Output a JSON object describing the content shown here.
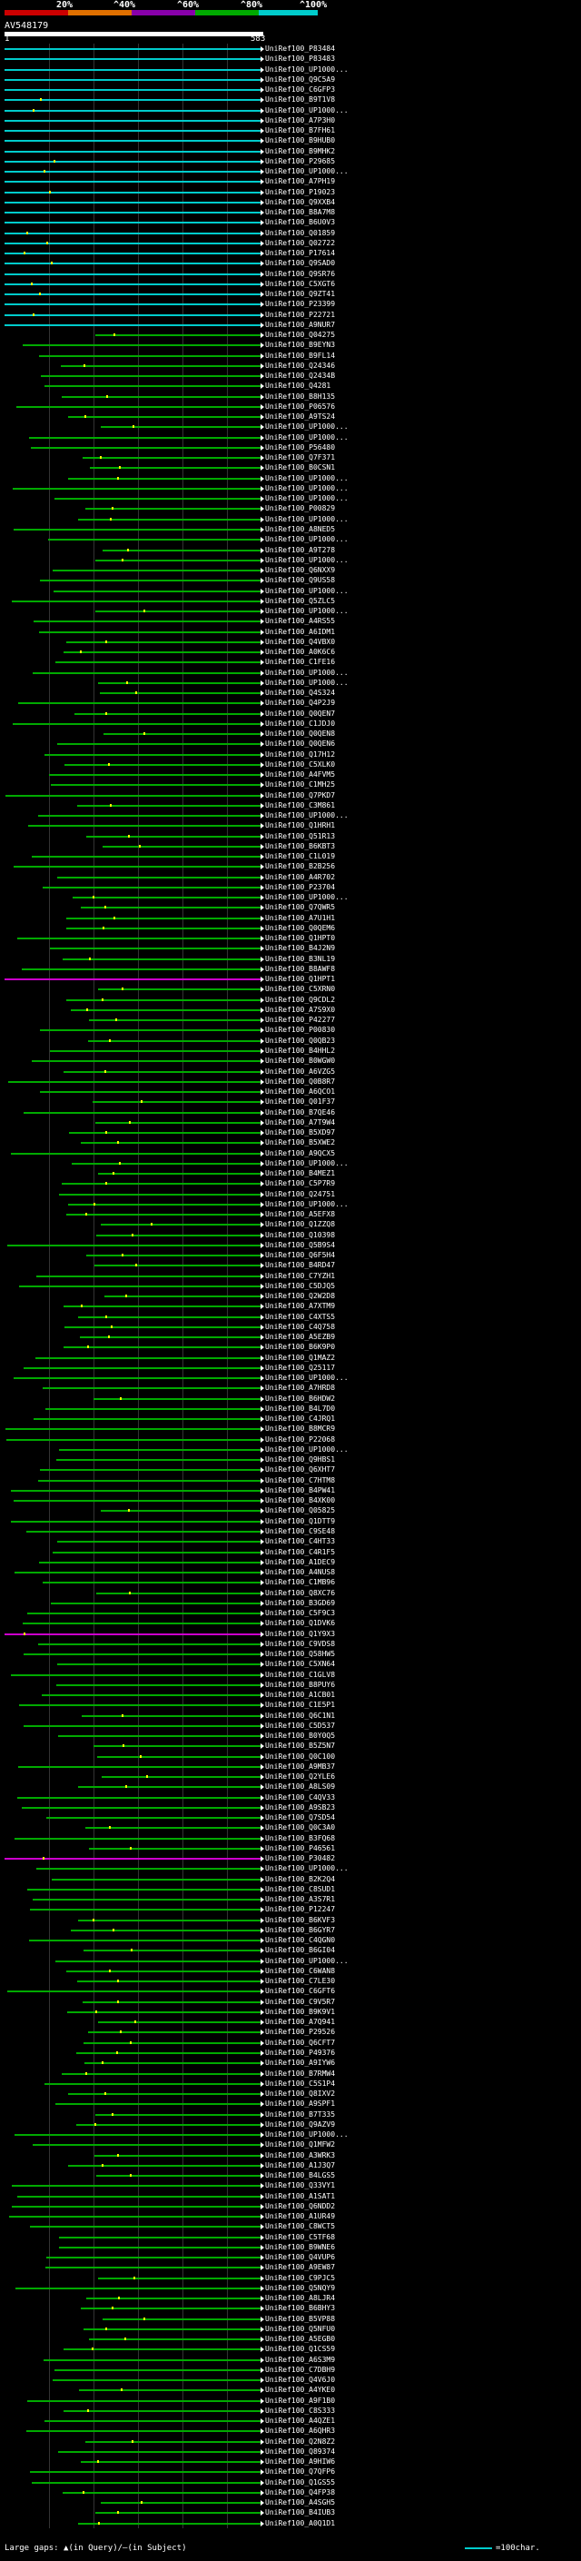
{
  "scale": {
    "labels": [
      "20%",
      "^40%",
      "^60%",
      "^80%",
      "^100%"
    ],
    "colors": [
      "#cc0000",
      "#e07000",
      "#8800aa",
      "#00aa00",
      "#00cccc"
    ]
  },
  "query": {
    "title": "AV548179",
    "start": "1",
    "end": "583"
  },
  "hit_colors": {
    "cyan": "#00cccc",
    "green": "#00aa00",
    "magenta": "#cc00cc",
    "insert": "#ffff00"
  },
  "hits": [
    "UniRef100_P83484",
    "UniRef100_P83483",
    "UniRef100_UP1000...",
    "UniRef100_Q9C5A9",
    "UniRef100_C6GFP3",
    "UniRef100_B9T1V8",
    "UniRef100_UP1000...",
    "UniRef100_A7P3H0",
    "UniRef100_B7FH61",
    "UniRef100_B9HUB0",
    "UniRef100_B9MHK2",
    "UniRef100_P29685",
    "UniRef100_UP1000...",
    "UniRef100_A7PH19",
    "UniRef100_P19023",
    "UniRef100_Q9XXB4",
    "UniRef100_B8A7M8",
    "UniRef100_B6U0V3",
    "UniRef100_Q01859",
    "UniRef100_Q02722",
    "UniRef100_P17614",
    "UniRef100_Q9SAD0",
    "UniRef100_Q9SR76",
    "UniRef100_C5XGT6",
    "UniRef100_Q9ZT41",
    "UniRef100_P23399",
    "UniRef100_P22721",
    "UniRef100_A9NUR7",
    "UniRef100_Q04275",
    "UniRef100_B9EYN3",
    "UniRef100_B9FL14",
    "UniRef100_Q24346",
    "UniRef100_Q2434B",
    "UniRef100_Q4281",
    "UniRef100_B8H135",
    "UniRef100_P06576",
    "UniRef100_A9TS24",
    "UniRef100_UP1000...",
    "UniRef100_UP1000...",
    "UniRef100_P56480",
    "UniRef100_Q7F371",
    "UniRef100_B0CSN1",
    "UniRef100_UP1000...",
    "UniRef100_UP1000...",
    "UniRef100_UP1000...",
    "UniRef100_P00829",
    "UniRef100_UP1000...",
    "UniRef100_A8NED5",
    "UniRef100_UP1000...",
    "UniRef100_A9T278",
    "UniRef100_UP1000...",
    "UniRef100_Q6NXX9",
    "UniRef100_Q9US58",
    "UniRef100_UP1000...",
    "UniRef100_Q5ZLC5",
    "UniRef100_UP1000...",
    "UniRef100_A4RS55",
    "UniRef100_A6IDM1",
    "UniRef100_Q4VBX0",
    "UniRef100_A0K6C6",
    "UniRef100_C1FE16",
    "UniRef100_UP1000...",
    "UniRef100_UP1000...",
    "UniRef100_Q4S324",
    "UniRef100_Q4P2J9",
    "UniRef100_Q0QEN7",
    "UniRef100_C1JDJ0",
    "UniRef100_Q0QEN8",
    "UniRef100_Q0QEN6",
    "UniRef100_Q17H12",
    "UniRef100_C5XLK0",
    "UniRef100_A4FVM5",
    "UniRef100_C1MH25",
    "UniRef100_Q7PKD7",
    "UniRef100_C3M861",
    "UniRef100_UP1000...",
    "UniRef100_Q1HRH1",
    "UniRef100_Q51R13",
    "UniRef100_B6KBT3",
    "UniRef100_C1L019",
    "UniRef100_B2B256",
    "UniRef100_A4R702",
    "UniRef100_P23704",
    "UniRef100_UP1000...",
    "UniRef100_Q7QWR5",
    "UniRef100_A7U1H1",
    "UniRef100_Q0QEM6",
    "UniRef100_Q1HPT0",
    "UniRef100_B4J2N9",
    "UniRef100_B3NL19",
    "UniRef100_B8AWF8",
    "UniRef100_Q1HPT1",
    "UniRef100_C5XRN0",
    "UniRef100_Q9CDL2",
    "UniRef100_A7S9X0",
    "UniRef100_P42277",
    "UniRef100_P00830",
    "UniRef100_Q0QB23",
    "UniRef100_B4HHL2",
    "UniRef100_B0WGW0",
    "UniRef100_A6VZG5",
    "UniRef100_Q0B8R7",
    "UniRef100_A6QCO1",
    "UniRef100_Q01F37",
    "UniRef100_B7QE46",
    "UniRef100_A7T9W4",
    "UniRef100_B5XD97",
    "UniRef100_B5XWE2",
    "UniRef100_A9QCX5",
    "UniRef100_UP1000...",
    "UniRef100_B4MEZ1",
    "UniRef100_C5P7R9",
    "UniRef100_Q24751",
    "UniRef100_UP1000...",
    "UniRef100_A5EFX8",
    "UniRef100_Q1ZZQ8",
    "UniRef100_Q10398",
    "UniRef100_Q5B9S4",
    "UniRef100_Q6F5H4",
    "UniRef100_B4RD47",
    "UniRef100_C7YZH1",
    "UniRef100_C5DJQ5",
    "UniRef100_Q2W2D8",
    "UniRef100_A7XTM9",
    "UniRef100_C4XTS5",
    "UniRef100_C4Q758",
    "UniRef100_A5EZB9",
    "UniRef100_B6K9P0",
    "UniRef100_Q1MAZ2",
    "UniRef100_Q25117",
    "UniRef100_UP1000...",
    "UniRef100_A7HRD8",
    "UniRef100_B6HDW2",
    "UniRef100_B4L7D0",
    "UniRef100_C4JRQ1",
    "UniRef100_B8MCR9",
    "UniRef100_P22068",
    "UniRef100_UP1000...",
    "UniRef100_Q9HBS1",
    "UniRef100_Q6XHT7",
    "UniRef100_C7HTM8",
    "UniRef100_B4PW41",
    "UniRef100_B4XK00",
    "UniRef100_Q05825",
    "UniRef100_Q1DTT9",
    "UniRef100_C9SE48",
    "UniRef100_C4HT33",
    "UniRef100_C4R1F5",
    "UniRef100_A1DEC9",
    "UniRef100_A4NUS8",
    "UniRef100_C1MB96",
    "UniRef100_Q8XC76",
    "UniRef100_B3GD69",
    "UniRef100_C5F9C3",
    "UniRef100_Q1DVK6",
    "UniRef100_Q1Y9X3",
    "UniRef100_C9VDS8",
    "UniRef100_Q58HW5",
    "UniRef100_C5XN64",
    "UniRef100_C1GLV8",
    "UniRef100_B8PUY6",
    "UniRef100_A1CB01",
    "UniRef100_C1E5P1",
    "UniRef100_Q6C1N1",
    "UniRef100_C5D537",
    "UniRef100_B0Y0Q5",
    "UniRef100_B5Z5N7",
    "UniRef100_Q0C100",
    "UniRef100_A9MB37",
    "UniRef100_Q2YLE6",
    "UniRef100_A8LS09",
    "UniRef100_C4QV33",
    "UniRef100_A9SB23",
    "UniRef100_Q7SD54",
    "UniRef100_Q0C3A0",
    "UniRef100_B3FQ68",
    "UniRef100_P46561",
    "UniRef100_P30482",
    "UniRef100_UP1000...",
    "UniRef100_B2K2Q4",
    "UniRef100_C8SUD1",
    "UniRef100_A3S7R1",
    "UniRef100_P12247",
    "UniRef100_B6KVF3",
    "UniRef100_B6GYR7",
    "UniRef100_C4QGN0",
    "UniRef100_B6GI04",
    "UniRef100_UP1000...",
    "UniRef100_C6WAN8",
    "UniRef100_C7LE30",
    "UniRef100_C6GFT6",
    "UniRef100_C9V5R7",
    "UniRef100_B9K9V1",
    "UniRef100_A7Q941",
    "UniRef100_P29526",
    "UniRef100_Q6CFT7",
    "UniRef100_P49376",
    "UniRef100_A9IYW6",
    "UniRef100_B7RMW4",
    "UniRef100_C5S1P4",
    "UniRef100_Q8IXV2",
    "UniRef100_A9SPF1",
    "UniRef100_B7T335",
    "UniRef100_Q9AZV9",
    "UniRef100_UP1000...",
    "UniRef100_Q1MFW2",
    "UniRef100_A3WRK3",
    "UniRef100_A1J3Q7",
    "UniRef100_B4LGS5",
    "UniRef100_Q33VY1",
    "UniRef100_A1SAT1",
    "UniRef100_Q6NDD2",
    "UniRef100_A1UR49",
    "UniRef100_C8WCT5",
    "UniRef100_C5TF68",
    "UniRef100_B9WNE6",
    "UniRef100_Q4VUP6",
    "UniRef100_A9EW87",
    "UniRef100_C9PJC5",
    "UniRef100_Q5NQY9",
    "UniRef100_A8LJR4",
    "UniRef100_B6BHY3",
    "UniRef100_B5VP88",
    "UniRef100_Q5NFU0",
    "UniRef100_A5EGB0",
    "UniRef100_Q1CS59",
    "UniRef100_A6S3M9",
    "UniRef100_C7DBH9",
    "UniRef100_Q4V6J0",
    "UniRef100_A4YKE0",
    "UniRef100_A9F1B0",
    "UniRef100_C8S333",
    "UniRef100_A4QZE1",
    "UniRef100_A6QHR3",
    "UniRef100_Q2N8Z2",
    "UniRef100_Q89374",
    "UniRef100_A9HIW6",
    "UniRef100_Q7QFP6",
    "UniRef100_Q1GS55",
    "UniRef100_Q4FP38",
    "UniRef100_A4SGH5",
    "UniRef100_B4IUB3",
    "UniRef100_A0Q1D1"
  ],
  "legend": {
    "gaps": "Large gaps: ▲(in Query)/—(in Subject)",
    "scale": "=100char."
  }
}
